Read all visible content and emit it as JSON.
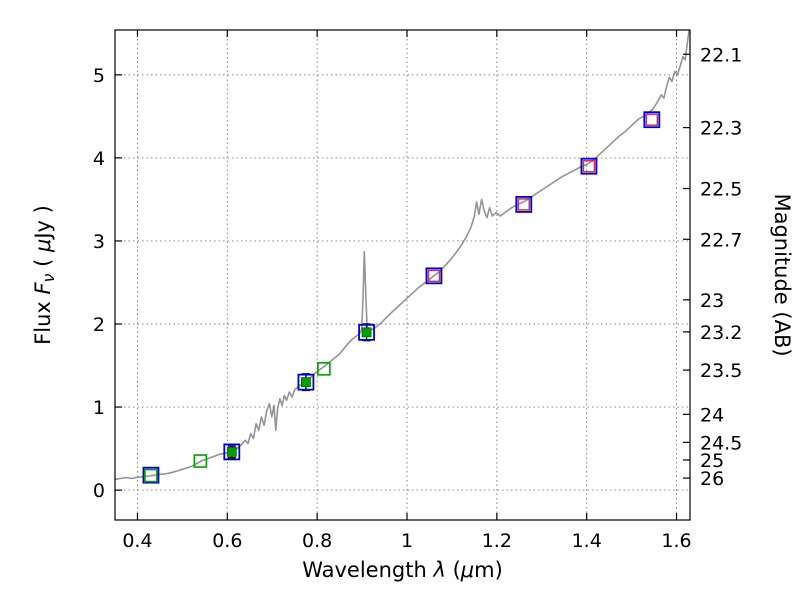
{
  "chart_data": {
    "type": "line",
    "title": "",
    "xlabel": "Wavelength λ (μm)",
    "ylabel": "Flux Fν ( μJy )",
    "right_ylabel": "Magnitude (AB)",
    "xlabel_segments": [
      {
        "t": "Wavelength  "
      },
      {
        "t": "λ",
        "i": 1
      },
      {
        "t": " ("
      },
      {
        "t": "μ",
        "i": 1
      },
      {
        "t": "m)"
      }
    ],
    "ylabel_segments": [
      {
        "t": "Flux  "
      },
      {
        "t": "F",
        "i": 1
      },
      {
        "t": "ν",
        "i": 1,
        "sub": 1
      },
      {
        "t": "  ( "
      },
      {
        "t": "μ",
        "i": 1
      },
      {
        "t": "Jy )"
      }
    ],
    "right_ylabel_segments": [
      {
        "t": "Magnitude (AB)"
      }
    ],
    "xlim": [
      0.35,
      1.63
    ],
    "ylim": [
      -0.36,
      5.54
    ],
    "grid": "dotted",
    "legend": "none",
    "xticks": {
      "values": [
        0.4,
        0.6,
        0.8,
        1.0,
        1.2,
        1.4,
        1.6
      ],
      "labels": [
        "0.4",
        "0.6",
        "0.8",
        "1",
        "1.2",
        "1.4",
        "1.6"
      ]
    },
    "yticks": {
      "values": [
        0,
        1,
        2,
        3,
        4,
        5
      ],
      "labels": [
        "0",
        "1",
        "2",
        "3",
        "4",
        "5"
      ]
    },
    "right_yticks": [
      {
        "label": "22.1",
        "flux": 5.248
      },
      {
        "label": "22.3",
        "flux": 4.365
      },
      {
        "label": "22.5",
        "flux": 3.631
      },
      {
        "label": "22.7",
        "flux": 3.02
      },
      {
        "label": "23",
        "flux": 2.291
      },
      {
        "label": "23.2",
        "flux": 1.905
      },
      {
        "label": "23.5",
        "flux": 1.445
      },
      {
        "label": "24",
        "flux": 0.912
      },
      {
        "label": "24.5",
        "flux": 0.575
      },
      {
        "label": "25",
        "flux": 0.363
      },
      {
        "label": "26",
        "flux": 0.145
      }
    ],
    "colors": {
      "spectrum": "#949494",
      "blue_square": "#0000dd",
      "red_square": "#cc3355",
      "green": "#00a000",
      "green_fill": "#00a000",
      "error_bar": "#000000",
      "frame": "#000000",
      "grid": "#777777"
    },
    "series": [
      {
        "name": "model-spectrum",
        "kind": "line",
        "points": [
          [
            0.35,
            0.13
          ],
          [
            0.362,
            0.14
          ],
          [
            0.375,
            0.15
          ],
          [
            0.388,
            0.14
          ],
          [
            0.4,
            0.155
          ],
          [
            0.412,
            0.16
          ],
          [
            0.425,
            0.17
          ],
          [
            0.438,
            0.18
          ],
          [
            0.45,
            0.19
          ],
          [
            0.462,
            0.195
          ],
          [
            0.475,
            0.21
          ],
          [
            0.488,
            0.23
          ],
          [
            0.5,
            0.25
          ],
          [
            0.512,
            0.27
          ],
          [
            0.522,
            0.29
          ],
          [
            0.532,
            0.32
          ],
          [
            0.542,
            0.35
          ],
          [
            0.552,
            0.37
          ],
          [
            0.562,
            0.39
          ],
          [
            0.572,
            0.41
          ],
          [
            0.582,
            0.43
          ],
          [
            0.592,
            0.44
          ],
          [
            0.602,
            0.455
          ],
          [
            0.612,
            0.47
          ],
          [
            0.622,
            0.5
          ],
          [
            0.632,
            0.55
          ],
          [
            0.64,
            0.6
          ],
          [
            0.646,
            0.56
          ],
          [
            0.652,
            0.68
          ],
          [
            0.658,
            0.62
          ],
          [
            0.664,
            0.8
          ],
          [
            0.67,
            0.72
          ],
          [
            0.676,
            0.88
          ],
          [
            0.682,
            0.78
          ],
          [
            0.688,
            0.96
          ],
          [
            0.694,
            1.04
          ],
          [
            0.699,
            0.88
          ],
          [
            0.704,
            1.02
          ],
          [
            0.708,
            0.72
          ],
          [
            0.712,
            0.98
          ],
          [
            0.717,
            1.1
          ],
          [
            0.722,
            1.02
          ],
          [
            0.727,
            1.14
          ],
          [
            0.732,
            1.08
          ],
          [
            0.738,
            1.18
          ],
          [
            0.744,
            1.12
          ],
          [
            0.75,
            1.21
          ],
          [
            0.757,
            1.24
          ],
          [
            0.764,
            1.27
          ],
          [
            0.772,
            1.29
          ],
          [
            0.78,
            1.32
          ],
          [
            0.788,
            1.37
          ],
          [
            0.796,
            1.41
          ],
          [
            0.805,
            1.45
          ],
          [
            0.814,
            1.48
          ],
          [
            0.823,
            1.52
          ],
          [
            0.832,
            1.56
          ],
          [
            0.841,
            1.6
          ],
          [
            0.85,
            1.64
          ],
          [
            0.859,
            1.7
          ],
          [
            0.868,
            1.76
          ],
          [
            0.877,
            1.81
          ],
          [
            0.886,
            1.85
          ],
          [
            0.894,
            1.88
          ],
          [
            0.899,
            1.93
          ],
          [
            0.902,
            2.3
          ],
          [
            0.905,
            2.87
          ],
          [
            0.908,
            2.4
          ],
          [
            0.911,
            1.98
          ],
          [
            0.916,
            1.92
          ],
          [
            0.924,
            1.94
          ],
          [
            0.933,
            1.97
          ],
          [
            0.942,
            2.01
          ],
          [
            0.951,
            2.06
          ],
          [
            0.96,
            2.11
          ],
          [
            0.97,
            2.16
          ],
          [
            0.98,
            2.21
          ],
          [
            0.99,
            2.26
          ],
          [
            1.0,
            2.31
          ],
          [
            1.012,
            2.37
          ],
          [
            1.024,
            2.43
          ],
          [
            1.036,
            2.48
          ],
          [
            1.048,
            2.53
          ],
          [
            1.06,
            2.58
          ],
          [
            1.072,
            2.63
          ],
          [
            1.084,
            2.7
          ],
          [
            1.096,
            2.77
          ],
          [
            1.108,
            2.85
          ],
          [
            1.12,
            2.94
          ],
          [
            1.132,
            3.05
          ],
          [
            1.142,
            3.16
          ],
          [
            1.15,
            3.3
          ],
          [
            1.155,
            3.47
          ],
          [
            1.16,
            3.32
          ],
          [
            1.166,
            3.5
          ],
          [
            1.172,
            3.36
          ],
          [
            1.178,
            3.28
          ],
          [
            1.184,
            3.4
          ],
          [
            1.19,
            3.3
          ],
          [
            1.198,
            3.34
          ],
          [
            1.208,
            3.3
          ],
          [
            1.22,
            3.35
          ],
          [
            1.233,
            3.4
          ],
          [
            1.246,
            3.44
          ],
          [
            1.26,
            3.47
          ],
          [
            1.274,
            3.52
          ],
          [
            1.288,
            3.57
          ],
          [
            1.302,
            3.62
          ],
          [
            1.316,
            3.67
          ],
          [
            1.33,
            3.72
          ],
          [
            1.344,
            3.77
          ],
          [
            1.358,
            3.81
          ],
          [
            1.372,
            3.85
          ],
          [
            1.386,
            3.89
          ],
          [
            1.4,
            3.92
          ],
          [
            1.412,
            3.96
          ],
          [
            1.424,
            4.02
          ],
          [
            1.436,
            4.08
          ],
          [
            1.448,
            4.14
          ],
          [
            1.46,
            4.2
          ],
          [
            1.472,
            4.26
          ],
          [
            1.484,
            4.31
          ],
          [
            1.496,
            4.37
          ],
          [
            1.506,
            4.42
          ],
          [
            1.516,
            4.47
          ],
          [
            1.526,
            4.5
          ],
          [
            1.536,
            4.54
          ],
          [
            1.546,
            4.58
          ],
          [
            1.556,
            4.66
          ],
          [
            1.566,
            4.76
          ],
          [
            1.572,
            4.72
          ],
          [
            1.578,
            4.86
          ],
          [
            1.584,
            4.97
          ],
          [
            1.59,
            4.92
          ],
          [
            1.596,
            5.04
          ],
          [
            1.602,
            5.0
          ],
          [
            1.608,
            5.1
          ],
          [
            1.614,
            5.22
          ],
          [
            1.619,
            5.18
          ],
          [
            1.624,
            5.38
          ],
          [
            1.628,
            5.54
          ]
        ]
      },
      {
        "name": "synthetic-photometry-blue-squares",
        "kind": "open-square",
        "size": 15,
        "points": [
          [
            0.43,
            0.18
          ],
          [
            0.61,
            0.46
          ],
          [
            0.775,
            1.3
          ],
          [
            0.91,
            1.9
          ],
          [
            1.06,
            2.58
          ],
          [
            1.26,
            3.44
          ],
          [
            1.405,
            3.9
          ],
          [
            1.545,
            4.46
          ]
        ]
      },
      {
        "name": "predicted-photometry-red-squares",
        "kind": "open-square",
        "size": 11,
        "points": [
          [
            1.06,
            2.58
          ],
          [
            1.26,
            3.44
          ],
          [
            1.405,
            3.9
          ],
          [
            1.545,
            4.46
          ]
        ]
      },
      {
        "name": "observed-photometry-green-open-squares",
        "kind": "open-square",
        "size": 12,
        "points": [
          [
            0.43,
            0.175
          ],
          [
            0.54,
            0.35
          ],
          [
            0.815,
            1.46
          ]
        ]
      },
      {
        "name": "observed-photometry-green-filled-squares",
        "kind": "filled-square",
        "size": 9,
        "points": [
          [
            0.61,
            0.46,
            0.07
          ],
          [
            0.775,
            1.3,
            0.1
          ],
          [
            0.91,
            1.9,
            0.1
          ]
        ]
      }
    ]
  }
}
